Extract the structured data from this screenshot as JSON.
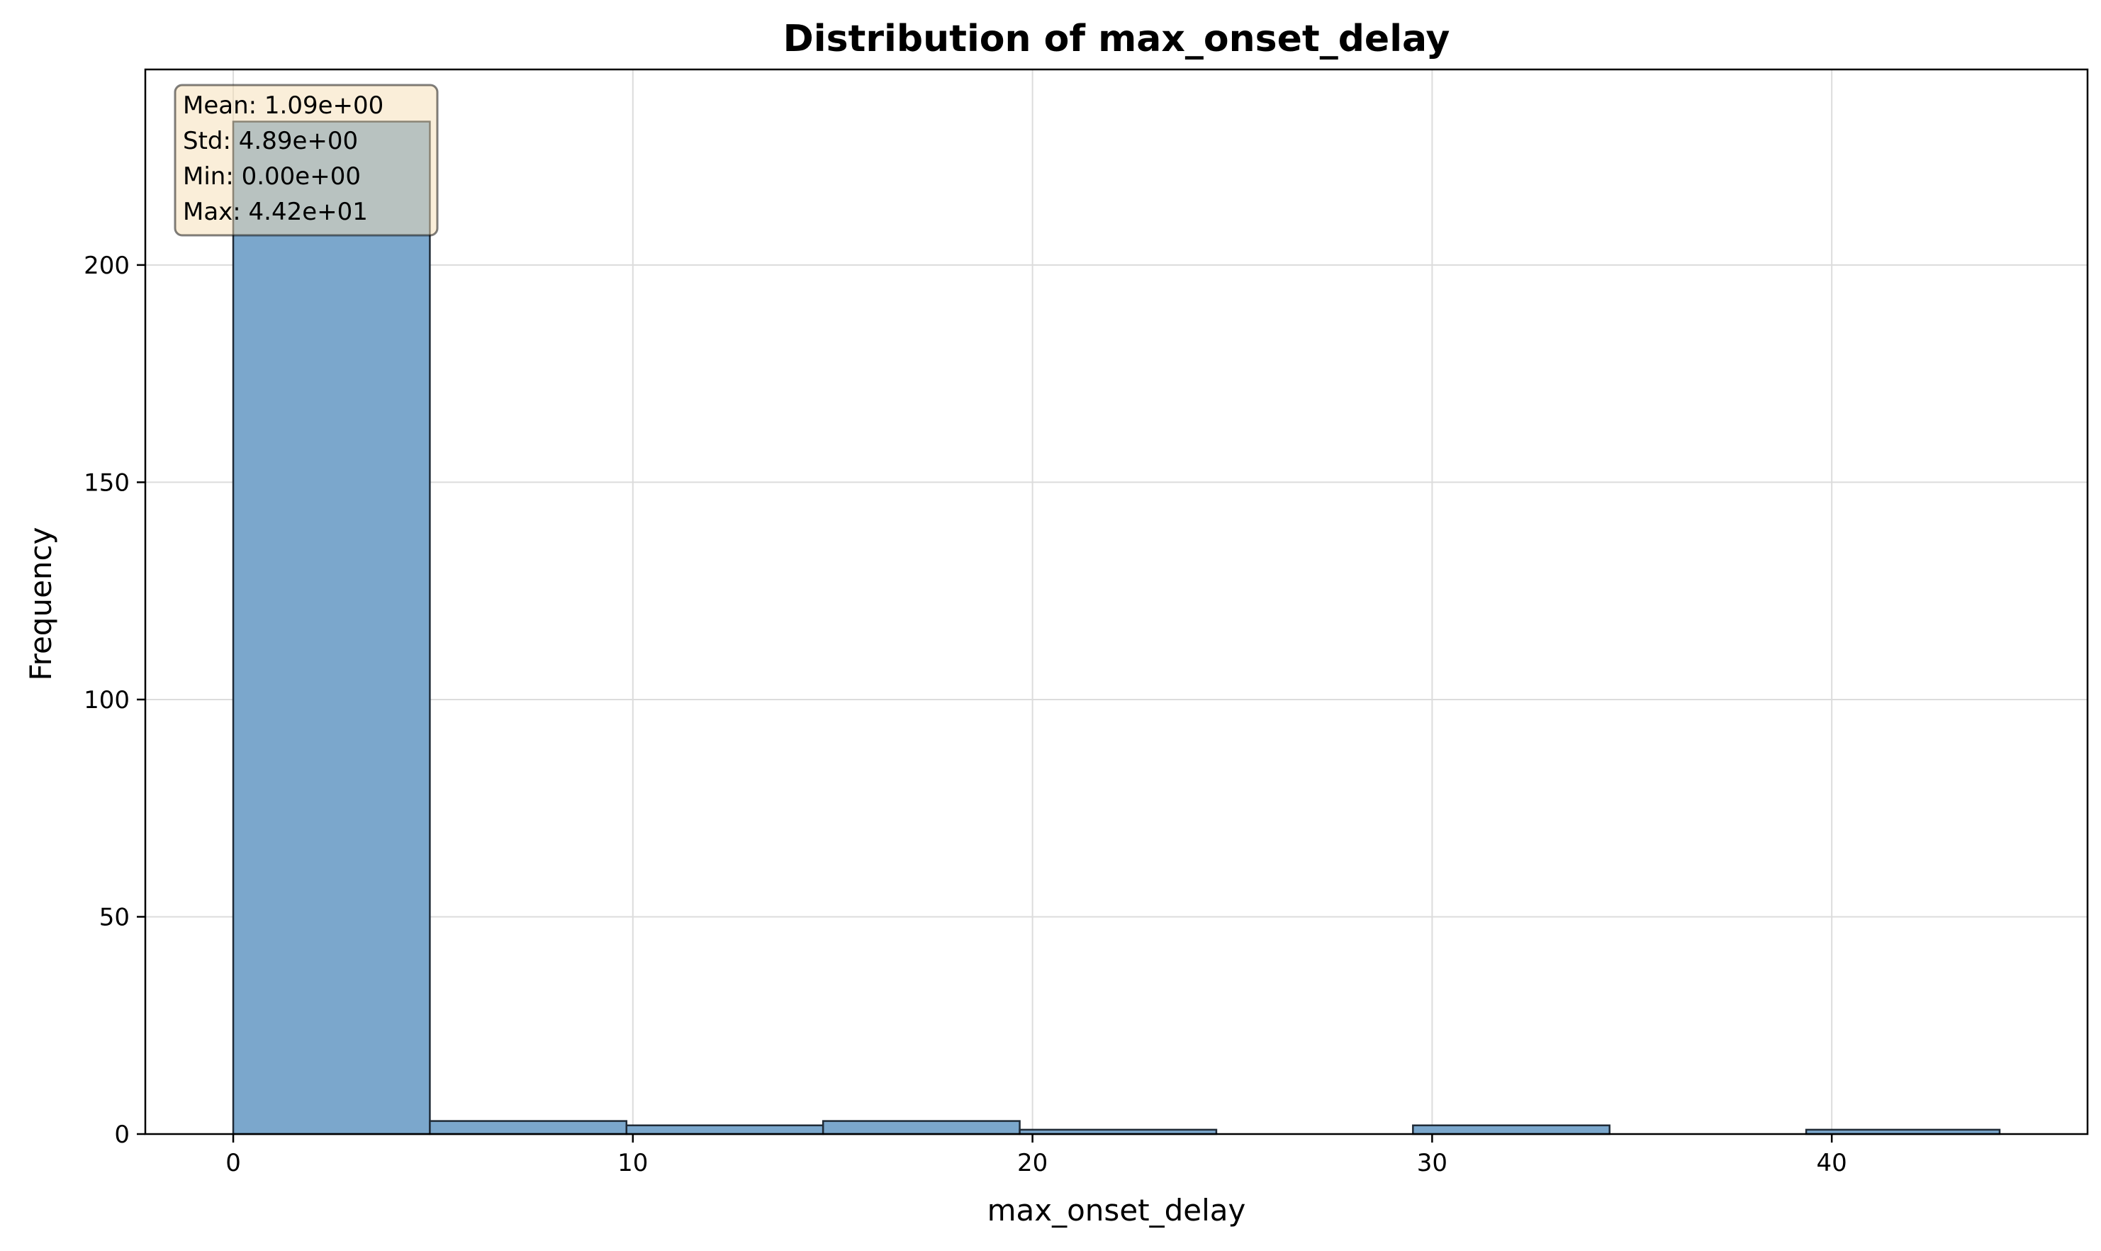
{
  "chart_data": {
    "type": "bar",
    "title": "Distribution of max_onset_delay",
    "xlabel": "max_onset_delay",
    "ylabel": "Frequency",
    "xlim": [
      -2.2,
      46.4
    ],
    "ylim": [
      0,
      245
    ],
    "xticks": [
      0,
      10,
      20,
      30,
      40
    ],
    "yticks": [
      0,
      50,
      100,
      150,
      200
    ],
    "grid": true,
    "bar_color": "#7ba7cc",
    "edge_color": "#1f2a36",
    "bins": [
      {
        "x0": 0.0,
        "x1": 4.92,
        "count": 233
      },
      {
        "x0": 4.92,
        "x1": 9.84,
        "count": 3
      },
      {
        "x0": 9.84,
        "x1": 14.76,
        "count": 2
      },
      {
        "x0": 14.76,
        "x1": 19.68,
        "count": 3
      },
      {
        "x0": 19.68,
        "x1": 24.6,
        "count": 1
      },
      {
        "x0": 24.6,
        "x1": 29.52,
        "count": 0
      },
      {
        "x0": 29.52,
        "x1": 34.44,
        "count": 2
      },
      {
        "x0": 34.44,
        "x1": 39.36,
        "count": 0
      },
      {
        "x0": 39.36,
        "x1": 44.2,
        "count": 1
      }
    ],
    "stats": {
      "lines": [
        "Mean: 1.09e+00",
        "Std: 4.89e+00",
        "Min: 0.00e+00",
        "Max: 4.42e+01"
      ],
      "box_color": "#f5deb3"
    }
  }
}
